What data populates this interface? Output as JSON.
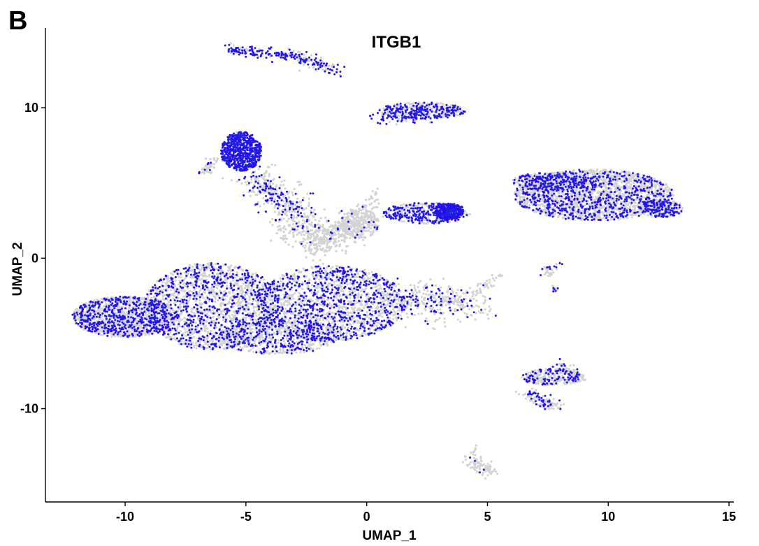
{
  "panel_letter": "B",
  "chart_data": {
    "type": "scatter",
    "title": "ITGB1",
    "xlabel": "UMAP_1",
    "ylabel": "UMAP_2",
    "xlim": [
      -13.3,
      15.2
    ],
    "ylim": [
      -16.2,
      15.3
    ],
    "xticks": [
      -10,
      -5,
      0,
      5,
      10,
      15
    ],
    "xtick_labels": [
      "-10",
      "-5",
      "0",
      "5",
      "10",
      "15"
    ],
    "yticks": [
      -10,
      0,
      10
    ],
    "ytick_labels": [
      "-10",
      "0",
      "10"
    ],
    "grid": false,
    "legend": "none",
    "colors": {
      "low": "#d3d3d3",
      "high": "#1f1fe0",
      "max": "#2b00ff"
    },
    "series": [
      {
        "name": "",
        "note_points": "cluster centers (UMAP units) with approximate mean ITGB1 expression (0-1)",
        "clusters": [
          {
            "x": -6.0,
            "y": -3.5,
            "expr": 0.35
          },
          {
            "x": -1.2,
            "y": -3.0,
            "expr": 0.35
          },
          {
            "x": -9.5,
            "y": -3.8,
            "expr": 0.35
          },
          {
            "x": -5.0,
            "y": 7.0,
            "expr": 0.8
          },
          {
            "x": -3.5,
            "y": 13.4,
            "expr": 0.6
          },
          {
            "x": 2.2,
            "y": 9.7,
            "expr": 0.45
          },
          {
            "x": 2.5,
            "y": 3.0,
            "expr": 0.55
          },
          {
            "x": 9.0,
            "y": 4.5,
            "expr": 0.3
          },
          {
            "x": 7.8,
            "y": -8.5,
            "expr": 0.25
          },
          {
            "x": 4.5,
            "y": -13.8,
            "expr": 0.05
          },
          {
            "x": 0.0,
            "y": 1.0,
            "expr": 0.05
          },
          {
            "x": 7.6,
            "y": -1.0,
            "expr": 0.2
          }
        ]
      }
    ]
  }
}
